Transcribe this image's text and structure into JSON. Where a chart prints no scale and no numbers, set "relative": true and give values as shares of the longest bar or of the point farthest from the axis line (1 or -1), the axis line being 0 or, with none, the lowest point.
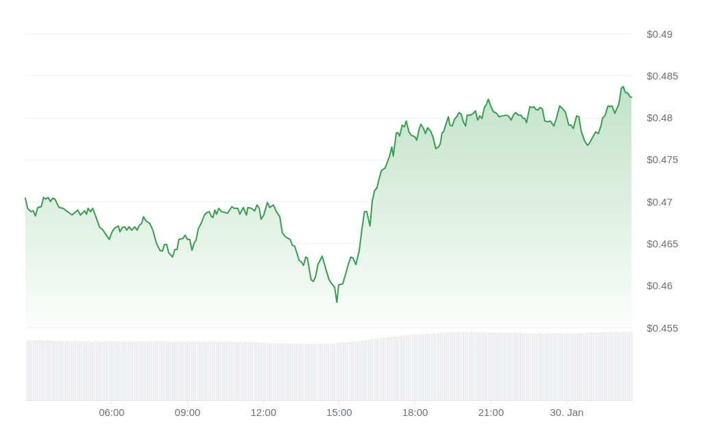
{
  "chart_data": [
    {
      "type": "area",
      "color": "#32a04a",
      "grid": "y",
      "tick_labels": "y",
      "xlim": [
        2.6,
        26.62
      ],
      "ylim": [
        0.455,
        0.49
      ],
      "yticks": [
        {
          "value": 0.455,
          "label": "$0.455"
        },
        {
          "value": 0.46,
          "label": "$0.46"
        },
        {
          "value": 0.465,
          "label": "$0.465"
        },
        {
          "value": 0.47,
          "label": "$0.47"
        },
        {
          "value": 0.475,
          "label": "$0.475"
        },
        {
          "value": 0.48,
          "label": "$0.48"
        },
        {
          "value": 0.485,
          "label": "$0.485"
        },
        {
          "value": 0.49,
          "label": "$0.49"
        }
      ],
      "x": [
        2.6,
        2.69,
        2.82,
        2.91,
        3.0,
        3.09,
        3.23,
        3.32,
        3.41,
        3.5,
        3.59,
        3.68,
        3.77,
        3.93,
        4.09,
        4.22,
        4.45,
        4.67,
        4.78,
        4.94,
        5.02,
        5.08,
        5.17,
        5.26,
        5.4,
        5.53,
        5.67,
        5.8,
        5.92,
        6.03,
        6.12,
        6.28,
        6.34,
        6.43,
        6.53,
        6.61,
        6.7,
        6.8,
        6.93,
        7.02,
        7.11,
        7.2,
        7.27,
        7.37,
        7.52,
        7.64,
        7.79,
        7.92,
        8.02,
        8.1,
        8.19,
        8.27,
        8.42,
        8.51,
        8.6,
        8.67,
        8.83,
        8.92,
        9.01,
        9.1,
        9.19,
        9.28,
        9.35,
        9.44,
        9.55,
        9.68,
        9.78,
        9.87,
        9.96,
        10.02,
        10.09,
        10.16,
        10.25,
        10.36,
        10.5,
        10.59,
        10.77,
        10.86,
        11.0,
        11.08,
        11.22,
        11.34,
        11.4,
        11.54,
        11.67,
        11.76,
        11.85,
        11.92,
        12.03,
        12.17,
        12.26,
        12.41,
        12.53,
        12.66,
        12.76,
        12.89,
        13.07,
        13.16,
        13.25,
        13.43,
        13.52,
        13.6,
        13.69,
        13.75,
        13.9,
        13.99,
        14.07,
        14.17,
        14.34,
        14.47,
        14.61,
        14.7,
        14.83,
        14.92,
        14.99,
        15.15,
        15.24,
        15.37,
        15.47,
        15.55,
        15.67,
        15.8,
        15.91,
        16.01,
        16.1,
        16.23,
        16.32,
        16.41,
        16.5,
        16.59,
        16.68,
        16.83,
        17.0,
        17.09,
        17.15,
        17.27,
        17.33,
        17.4,
        17.5,
        17.59,
        17.66,
        17.77,
        17.86,
        18.01,
        18.08,
        18.17,
        18.24,
        18.33,
        18.42,
        18.51,
        18.62,
        18.72,
        18.83,
        18.94,
        19.01,
        19.08,
        19.14,
        19.21,
        19.33,
        19.39,
        19.48,
        19.57,
        19.66,
        19.75,
        19.84,
        19.92,
        20.01,
        20.07,
        20.21,
        20.31,
        20.4,
        20.49,
        20.57,
        20.66,
        20.75,
        20.84,
        20.91,
        21.0,
        21.11,
        21.24,
        21.33,
        21.47,
        21.6,
        21.7,
        21.81,
        21.9,
        21.99,
        22.1,
        22.19,
        22.28,
        22.35,
        22.42,
        22.55,
        22.64,
        22.71,
        22.78,
        22.87,
        22.96,
        23.05,
        23.14,
        23.28,
        23.36,
        23.5,
        23.59,
        23.73,
        23.86,
        23.95,
        24.09,
        24.18,
        24.27,
        24.4,
        24.49,
        24.58,
        24.72,
        24.83,
        24.9,
        25.04,
        25.15,
        25.26,
        25.37,
        25.42,
        25.53,
        25.64,
        25.71,
        25.8,
        25.91,
        26.07,
        26.17,
        26.24,
        26.33,
        26.42,
        26.51,
        26.57
      ],
      "values": [
        0.4704,
        0.4692,
        0.4688,
        0.4689,
        0.4683,
        0.4693,
        0.4694,
        0.4705,
        0.4703,
        0.4705,
        0.47,
        0.4704,
        0.4703,
        0.4693,
        0.4692,
        0.4689,
        0.4684,
        0.469,
        0.4684,
        0.4689,
        0.4685,
        0.4692,
        0.4688,
        0.4692,
        0.4681,
        0.467,
        0.4666,
        0.466,
        0.4655,
        0.4664,
        0.4668,
        0.4671,
        0.4664,
        0.4669,
        0.467,
        0.4666,
        0.467,
        0.4666,
        0.467,
        0.4666,
        0.4672,
        0.4674,
        0.4682,
        0.4677,
        0.4674,
        0.4666,
        0.465,
        0.4642,
        0.4641,
        0.4649,
        0.4649,
        0.4639,
        0.4634,
        0.4643,
        0.4643,
        0.4655,
        0.4656,
        0.466,
        0.4655,
        0.4655,
        0.4642,
        0.4651,
        0.4654,
        0.4668,
        0.4674,
        0.4684,
        0.4687,
        0.4688,
        0.4682,
        0.4681,
        0.469,
        0.4685,
        0.4692,
        0.4688,
        0.4687,
        0.4686,
        0.4694,
        0.4692,
        0.4692,
        0.4685,
        0.4693,
        0.4684,
        0.4693,
        0.4692,
        0.4689,
        0.4696,
        0.4692,
        0.4679,
        0.4684,
        0.4699,
        0.4693,
        0.4696,
        0.4688,
        0.4682,
        0.4663,
        0.4658,
        0.4655,
        0.4648,
        0.4647,
        0.463,
        0.4628,
        0.4624,
        0.4634,
        0.4633,
        0.4607,
        0.4605,
        0.461,
        0.4625,
        0.4635,
        0.4621,
        0.4607,
        0.4603,
        0.4598,
        0.458,
        0.4601,
        0.4602,
        0.4611,
        0.4625,
        0.4634,
        0.4633,
        0.4625,
        0.4641,
        0.4667,
        0.4688,
        0.4688,
        0.4671,
        0.4701,
        0.4713,
        0.4716,
        0.4727,
        0.4737,
        0.474,
        0.4754,
        0.4765,
        0.4754,
        0.4782,
        0.4782,
        0.4778,
        0.4791,
        0.4789,
        0.4796,
        0.4783,
        0.4779,
        0.4777,
        0.4773,
        0.4786,
        0.4792,
        0.4788,
        0.4781,
        0.4788,
        0.4784,
        0.4777,
        0.4763,
        0.4765,
        0.4769,
        0.4782,
        0.4783,
        0.479,
        0.4801,
        0.4791,
        0.479,
        0.4798,
        0.4801,
        0.4806,
        0.4804,
        0.4795,
        0.479,
        0.4803,
        0.4803,
        0.4805,
        0.4808,
        0.4797,
        0.4802,
        0.4799,
        0.4812,
        0.4816,
        0.4822,
        0.4814,
        0.4807,
        0.4805,
        0.4801,
        0.4802,
        0.4803,
        0.4802,
        0.4797,
        0.4803,
        0.4806,
        0.4803,
        0.4803,
        0.4799,
        0.4799,
        0.4794,
        0.4813,
        0.4812,
        0.4813,
        0.481,
        0.4809,
        0.4812,
        0.481,
        0.4796,
        0.4795,
        0.4796,
        0.479,
        0.4798,
        0.4814,
        0.481,
        0.4807,
        0.4791,
        0.4791,
        0.4787,
        0.4802,
        0.4801,
        0.4784,
        0.4772,
        0.4767,
        0.4769,
        0.4777,
        0.4783,
        0.4781,
        0.4791,
        0.4799,
        0.4803,
        0.4814,
        0.4813,
        0.4814,
        0.4805,
        0.4816,
        0.4835,
        0.4837,
        0.483,
        0.4829,
        0.4825,
        0.4824
      ]
    },
    {
      "type": "bar",
      "relative": true,
      "color": "#eaecf0",
      "tick_labels": "x",
      "xlim": [
        2.6,
        26.62
      ],
      "xticks": [
        {
          "value": 6,
          "label": "06:00"
        },
        {
          "value": 9,
          "label": "09:00"
        },
        {
          "value": 12,
          "label": "12:00"
        },
        {
          "value": 15,
          "label": "15:00"
        },
        {
          "value": 18,
          "label": "18:00"
        },
        {
          "value": 21,
          "label": "21:00"
        },
        {
          "value": 24,
          "label": "30. Jan"
        }
      ],
      "x": [
        2.67,
        2.75,
        2.83,
        2.92,
        3,
        3.08,
        3.17,
        3.25,
        3.33,
        3.42,
        3.5,
        3.58,
        3.67,
        3.75,
        3.83,
        3.92,
        4,
        4.08,
        4.17,
        4.25,
        4.33,
        4.42,
        4.5,
        4.58,
        4.67,
        4.75,
        4.83,
        4.92,
        5,
        5.08,
        5.17,
        5.25,
        5.33,
        5.42,
        5.5,
        5.58,
        5.67,
        5.75,
        5.83,
        5.92,
        6,
        6.08,
        6.17,
        6.25,
        6.33,
        6.42,
        6.5,
        6.58,
        6.67,
        6.75,
        6.83,
        6.92,
        7,
        7.08,
        7.17,
        7.25,
        7.33,
        7.42,
        7.5,
        7.58,
        7.67,
        7.75,
        7.83,
        7.92,
        8,
        8.08,
        8.17,
        8.25,
        8.33,
        8.42,
        8.5,
        8.58,
        8.67,
        8.75,
        8.83,
        8.92,
        9,
        9.08,
        9.17,
        9.25,
        9.33,
        9.42,
        9.5,
        9.58,
        9.67,
        9.75,
        9.83,
        9.92,
        10,
        10.08,
        10.17,
        10.25,
        10.33,
        10.42,
        10.5,
        10.58,
        10.67,
        10.75,
        10.83,
        10.92,
        11,
        11.08,
        11.17,
        11.25,
        11.33,
        11.42,
        11.5,
        11.58,
        11.67,
        11.75,
        11.83,
        11.92,
        12,
        12.08,
        12.17,
        12.25,
        12.33,
        12.42,
        12.5,
        12.58,
        12.67,
        12.75,
        12.83,
        12.92,
        13,
        13.08,
        13.17,
        13.25,
        13.33,
        13.42,
        13.5,
        13.58,
        13.67,
        13.75,
        13.83,
        13.92,
        14,
        14.08,
        14.17,
        14.25,
        14.33,
        14.42,
        14.5,
        14.58,
        14.67,
        14.75,
        14.83,
        14.92,
        15,
        15.08,
        15.17,
        15.25,
        15.33,
        15.42,
        15.5,
        15.58,
        15.67,
        15.75,
        15.83,
        15.92,
        16,
        16.08,
        16.17,
        16.25,
        16.33,
        16.42,
        16.5,
        16.58,
        16.67,
        16.75,
        16.83,
        16.92,
        17,
        17.08,
        17.17,
        17.25,
        17.33,
        17.42,
        17.5,
        17.58,
        17.67,
        17.75,
        17.83,
        17.92,
        18,
        18.08,
        18.17,
        18.25,
        18.33,
        18.42,
        18.5,
        18.58,
        18.67,
        18.75,
        18.83,
        18.92,
        19,
        19.08,
        19.17,
        19.25,
        19.33,
        19.42,
        19.5,
        19.58,
        19.67,
        19.75,
        19.83,
        19.92,
        20,
        20.08,
        20.17,
        20.25,
        20.33,
        20.42,
        20.5,
        20.58,
        20.67,
        20.75,
        20.83,
        20.92,
        21,
        21.08,
        21.17,
        21.25,
        21.33,
        21.42,
        21.5,
        21.58,
        21.67,
        21.75,
        21.83,
        21.92,
        22,
        22.08,
        22.17,
        22.25,
        22.33,
        22.42,
        22.5,
        22.58,
        22.67,
        22.75,
        22.83,
        22.92,
        23,
        23.08,
        23.17,
        23.25,
        23.33,
        23.42,
        23.5,
        23.58,
        23.67,
        23.75,
        23.83,
        23.92,
        24,
        24.08,
        24.17,
        24.25,
        24.33,
        24.42,
        24.5,
        24.58,
        24.67,
        24.75,
        24.83,
        24.92,
        25,
        25.08,
        25.17,
        25.25,
        25.33,
        25.42,
        25.5,
        25.58,
        25.67,
        25.75,
        25.83,
        25.92,
        26,
        26.08,
        26.17,
        26.25,
        26.33,
        26.42,
        26.5,
        26.58
      ],
      "values": [
        0.87,
        0.88,
        0.87,
        0.87,
        0.87,
        0.87,
        0.88,
        0.87,
        0.87,
        0.87,
        0.88,
        0.87,
        0.87,
        0.86,
        0.87,
        0.87,
        0.87,
        0.86,
        0.86,
        0.87,
        0.86,
        0.86,
        0.86,
        0.87,
        0.86,
        0.86,
        0.86,
        0.86,
        0.86,
        0.86,
        0.86,
        0.85,
        0.86,
        0.86,
        0.86,
        0.86,
        0.85,
        0.86,
        0.86,
        0.86,
        0.86,
        0.86,
        0.85,
        0.86,
        0.86,
        0.85,
        0.86,
        0.86,
        0.86,
        0.85,
        0.86,
        0.86,
        0.86,
        0.86,
        0.86,
        0.85,
        0.86,
        0.86,
        0.86,
        0.86,
        0.85,
        0.86,
        0.86,
        0.86,
        0.86,
        0.85,
        0.86,
        0.86,
        0.86,
        0.85,
        0.86,
        0.86,
        0.85,
        0.86,
        0.86,
        0.85,
        0.86,
        0.86,
        0.85,
        0.86,
        0.85,
        0.86,
        0.86,
        0.85,
        0.86,
        0.85,
        0.85,
        0.86,
        0.85,
        0.86,
        0.85,
        0.85,
        0.86,
        0.85,
        0.85,
        0.85,
        0.86,
        0.85,
        0.85,
        0.85,
        0.85,
        0.85,
        0.84,
        0.85,
        0.85,
        0.84,
        0.85,
        0.84,
        0.84,
        0.85,
        0.84,
        0.84,
        0.84,
        0.84,
        0.83,
        0.84,
        0.83,
        0.84,
        0.83,
        0.83,
        0.84,
        0.83,
        0.83,
        0.83,
        0.83,
        0.83,
        0.82,
        0.83,
        0.83,
        0.82,
        0.83,
        0.82,
        0.82,
        0.83,
        0.82,
        0.82,
        0.82,
        0.83,
        0.82,
        0.82,
        0.83,
        0.82,
        0.83,
        0.83,
        0.82,
        0.83,
        0.83,
        0.84,
        0.84,
        0.84,
        0.85,
        0.84,
        0.85,
        0.85,
        0.85,
        0.86,
        0.85,
        0.86,
        0.86,
        0.87,
        0.87,
        0.88,
        0.88,
        0.89,
        0.89,
        0.89,
        0.9,
        0.9,
        0.91,
        0.91,
        0.91,
        0.92,
        0.92,
        0.92,
        0.93,
        0.93,
        0.93,
        0.94,
        0.94,
        0.94,
        0.95,
        0.95,
        0.95,
        0.96,
        0.96,
        0.96,
        0.96,
        0.97,
        0.96,
        0.97,
        0.97,
        0.97,
        0.97,
        0.98,
        0.97,
        0.98,
        0.98,
        0.99,
        0.98,
        0.99,
        0.99,
        0.99,
        1.0,
        0.99,
        1.0,
        1.0,
        0.99,
        1.0,
        1.0,
        0.99,
        1.0,
        1.0,
        0.99,
        1.0,
        0.99,
        0.99,
        1.0,
        0.99,
        0.99,
        0.99,
        0.99,
        0.99,
        0.99,
        0.98,
        0.99,
        0.99,
        0.98,
        0.99,
        0.99,
        0.98,
        0.99,
        0.99,
        0.98,
        0.98,
        0.99,
        0.98,
        0.98,
        0.98,
        0.97,
        0.98,
        0.98,
        0.98,
        0.97,
        0.98,
        0.98,
        0.97,
        0.98,
        0.98,
        0.97,
        0.98,
        0.98,
        0.97,
        0.98,
        0.98,
        0.98,
        0.98,
        0.98,
        0.98,
        0.97,
        0.98,
        0.98,
        0.98,
        0.98,
        0.99,
        0.98,
        0.98,
        0.99,
        0.99,
        0.99,
        0.99,
        0.98,
        0.99,
        0.99,
        0.99,
        1.0,
        0.99,
        0.99,
        1.0,
        0.99,
        1.0,
        1.0,
        1.0,
        0.99,
        1.0,
        1.0,
        1.0,
        1.0,
        1.0
      ]
    }
  ]
}
